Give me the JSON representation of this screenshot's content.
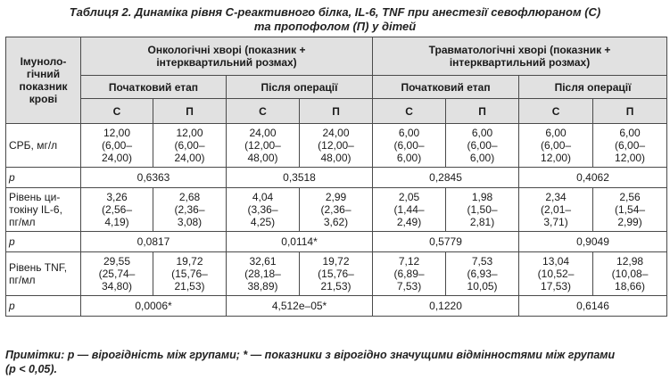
{
  "caption": {
    "line1": "Таблиця 2. Динаміка рівня С-реактивного білка, IL-6, TNF при анестезії севофлюраном (С)",
    "line2": "та пропофолом (П) у дітей"
  },
  "header": {
    "row_label": [
      "Імуноло-",
      "гічний",
      "показник",
      "крові"
    ],
    "group_onco": [
      "Онкологічні хворі (показник +",
      "інтерквартильний розмах)"
    ],
    "group_trauma": [
      "Травматологічні хворі (показник +",
      "інтерквартильний розмах)"
    ],
    "stage_initial": "Початковий етап",
    "stage_after": "Після операції",
    "col_s": "С",
    "col_p": "П"
  },
  "rows": [
    {
      "label": [
        "СРБ, мг/л"
      ],
      "cells": [
        [
          "12,00",
          "(6,00–",
          "24,00)"
        ],
        [
          "12,00",
          "(6,00–",
          "24,00)"
        ],
        [
          "24,00",
          "(12,00–",
          "48,00)"
        ],
        [
          "24,00",
          "(12,00–",
          "48,00)"
        ],
        [
          "6,00",
          "(6,00–",
          "6,00)"
        ],
        [
          "6,00",
          "(6,00–",
          "6,00)"
        ],
        [
          "6,00",
          "(6,00–",
          "12,00)"
        ],
        [
          "6,00",
          "(6,00–",
          "12,00)"
        ]
      ],
      "p_label": "p",
      "p": [
        "0,6363",
        "0,3518",
        "0,2845",
        "0,4062"
      ]
    },
    {
      "label": [
        "Рівень ци-",
        "токіну IL-6,",
        "пг/мл"
      ],
      "cells": [
        [
          "3,26",
          "(2,56–",
          "4,19)"
        ],
        [
          "2,68",
          "(2,36–",
          "3,08)"
        ],
        [
          "4,04",
          "(3,36–",
          "4,25)"
        ],
        [
          "2,99",
          "(2,36–",
          "3,62)"
        ],
        [
          "2,05",
          "(1,44–",
          "2,49)"
        ],
        [
          "1,98",
          "(1,50–",
          "2,81)"
        ],
        [
          "2,34",
          "(2,01–",
          "3,71)"
        ],
        [
          "2,56",
          "(1,54–",
          "2,99)"
        ]
      ],
      "p_label": "p",
      "p": [
        "0,0817",
        "0,0114*",
        "0,5779",
        "0,9049"
      ]
    },
    {
      "label": [
        "Рівень TNF,",
        "пг/мл"
      ],
      "cells": [
        [
          "29,55",
          "(25,74–",
          "34,80)"
        ],
        [
          "19,72",
          "(15,76–",
          "21,53)"
        ],
        [
          "32,61",
          "(28,18–",
          "38,89)"
        ],
        [
          "19,72",
          "(15,76–",
          "21,53)"
        ],
        [
          "7,12",
          "(6,89–",
          "7,53)"
        ],
        [
          "7,53",
          "(6,93–",
          "10,05)"
        ],
        [
          "13,04",
          "(10,52–",
          "17,53)"
        ],
        [
          "12,98",
          "(10,08–",
          "18,66)"
        ]
      ],
      "p_label": "p",
      "p": [
        "0,0006*",
        "4,512e–05*",
        "0,1220",
        "0,6146"
      ]
    }
  ],
  "note": {
    "line1": "Примітки: p — вірогідність між групами; * — показники з вірогідно значущими відмінностями між групами",
    "line2": "(p < 0,05)."
  }
}
